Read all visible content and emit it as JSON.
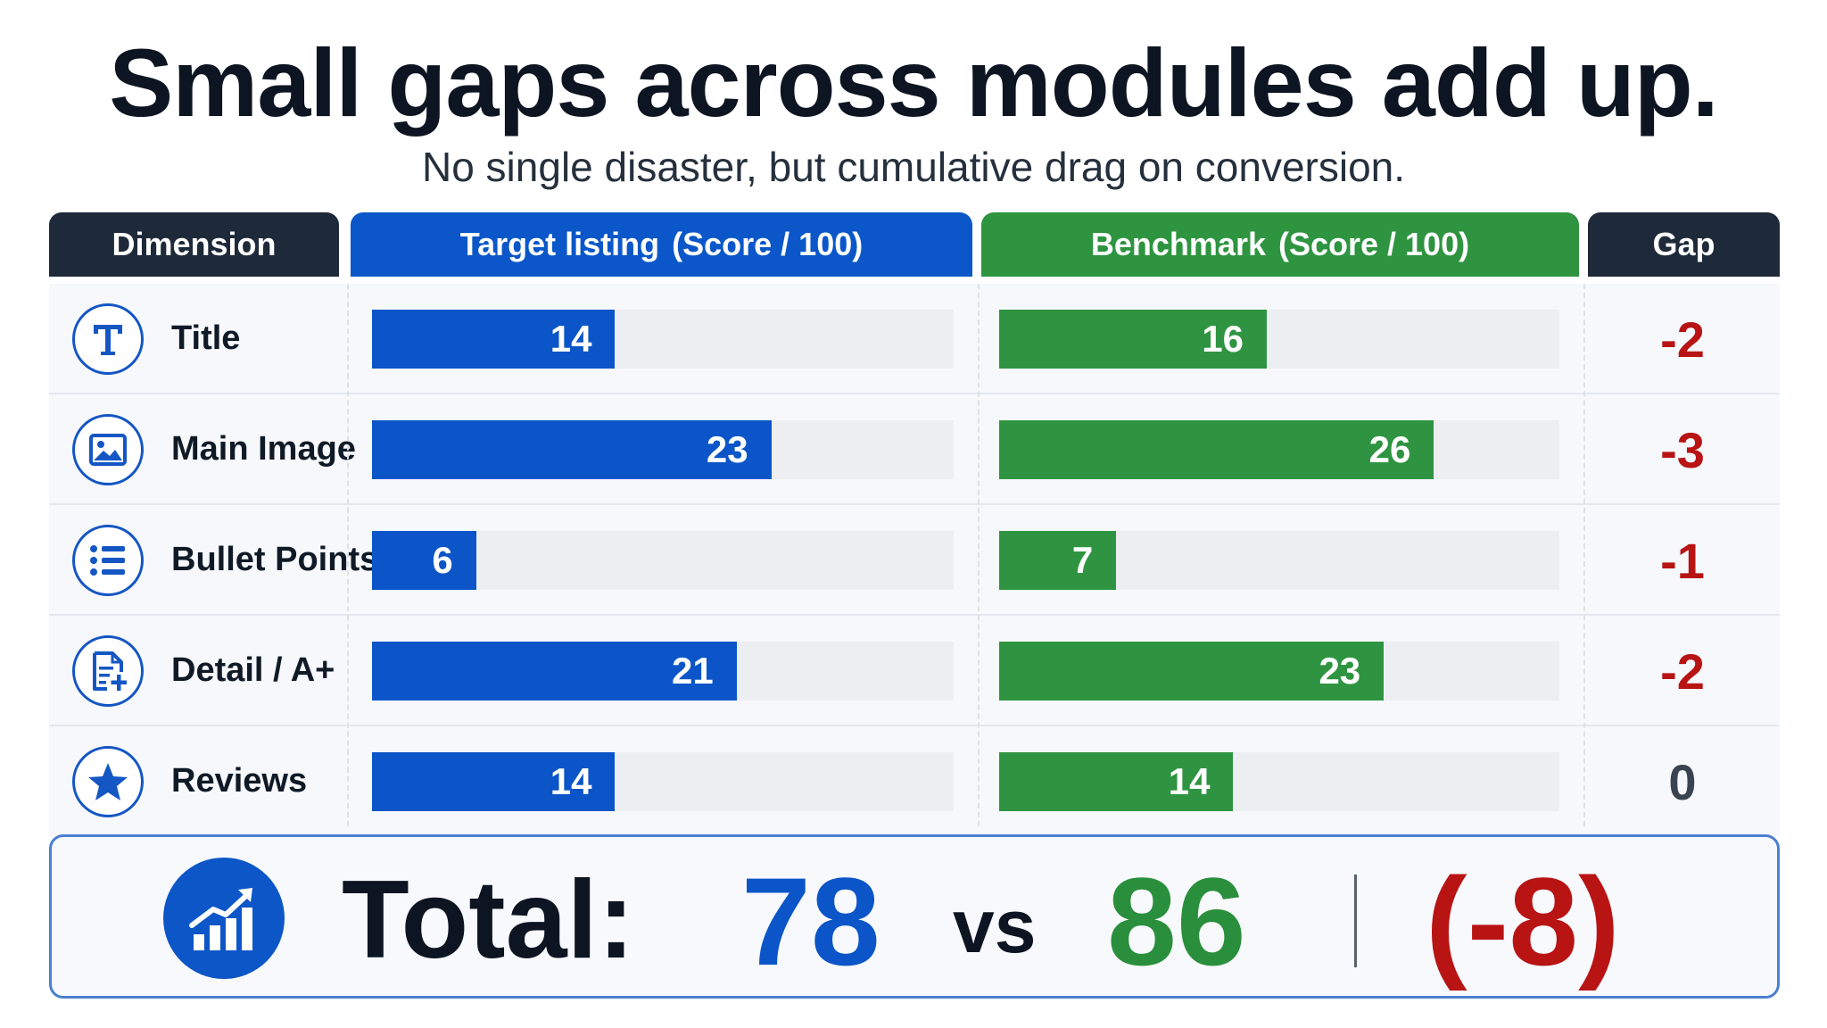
{
  "header": {
    "title": "Small gaps across modules add up.",
    "subtitle": "No single disaster, but cumulative drag on conversion."
  },
  "columns": {
    "dimension": "Dimension",
    "target_name": "Target listing",
    "target_unit": "(Score / 100)",
    "benchmark_name": "Benchmark",
    "benchmark_unit": "(Score / 100)",
    "gap": "Gap"
  },
  "rows": [
    {
      "label": "Title",
      "icon": "title-t-icon",
      "target": "14",
      "benchmark": "16",
      "gap": "-2"
    },
    {
      "label": "Main Image",
      "icon": "image-icon",
      "target": "23",
      "benchmark": "26",
      "gap": "-3"
    },
    {
      "label": "Bullet Points",
      "icon": "list-icon",
      "target": "6",
      "benchmark": "7",
      "gap": "-1"
    },
    {
      "label": "Detail / A+",
      "icon": "document-plus-icon",
      "target": "21",
      "benchmark": "23",
      "gap": "-2"
    },
    {
      "label": "Reviews",
      "icon": "star-icon",
      "target": "14",
      "benchmark": "14",
      "gap": "0"
    }
  ],
  "total": {
    "label": "Total:",
    "target": "78",
    "vs": "vs",
    "benchmark": "86",
    "gap": "(-8)",
    "icon": "bar-chart-trend-icon"
  },
  "colors": {
    "target": "#0b55c8",
    "benchmark": "#2f9441",
    "gap_negative": "#b81414",
    "gap_zero": "#3a4350",
    "header_dark": "#1e2939"
  },
  "chart_data": {
    "type": "bar",
    "orientation": "horizontal",
    "title": "Small gaps across modules add up.",
    "subtitle": "No single disaster, but cumulative drag on conversion.",
    "categories": [
      "Title",
      "Main Image",
      "Bullet Points",
      "Detail / A+",
      "Reviews"
    ],
    "series": [
      {
        "name": "Target listing",
        "values": [
          14,
          23,
          6,
          21,
          14
        ]
      },
      {
        "name": "Benchmark",
        "values": [
          16,
          26,
          7,
          23,
          14
        ]
      }
    ],
    "gap": [
      -2,
      -3,
      -1,
      -2,
      0
    ],
    "totals": {
      "target": 78,
      "benchmark": 86,
      "gap": -8
    },
    "value_unit": "Score / 100",
    "xlim": [
      0,
      33.5
    ],
    "grid": false
  }
}
